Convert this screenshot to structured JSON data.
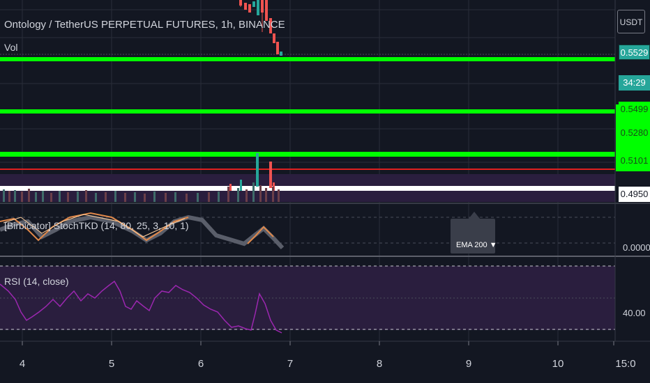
{
  "header": {
    "symbol_title": "Ontology / TetherUS PERPETUAL FUTURES, 1h, BINANCE",
    "vol_label": "Vol"
  },
  "indicators": {
    "stoch_label": "[Birbicator] StochTKD (14, 80, 25, 3, 10, 1)",
    "rsi_label": "RSI (14, close)",
    "ema_tooltip": "EMA 200 ▼"
  },
  "price_axis": {
    "currency_badge": "USDT",
    "current_price": "0.5529",
    "countdown": "34:29",
    "level_1": "0.5499",
    "level_2": "0.5280",
    "level_3": "0.5101",
    "level_4": "0.4950",
    "stoch_value": "0.0000",
    "rsi_value": "40.00"
  },
  "time_axis": {
    "labels": [
      "4",
      "5",
      "6",
      "7",
      "8",
      "9",
      "10",
      "15:0"
    ]
  },
  "colors": {
    "background": "#131722",
    "level_line": "#00ff00",
    "resistance_red": "#e02020",
    "rsi_line": "#9c27b0",
    "rsi_band": "#2a1e3e",
    "current_price_tag": "#26a69a"
  }
}
